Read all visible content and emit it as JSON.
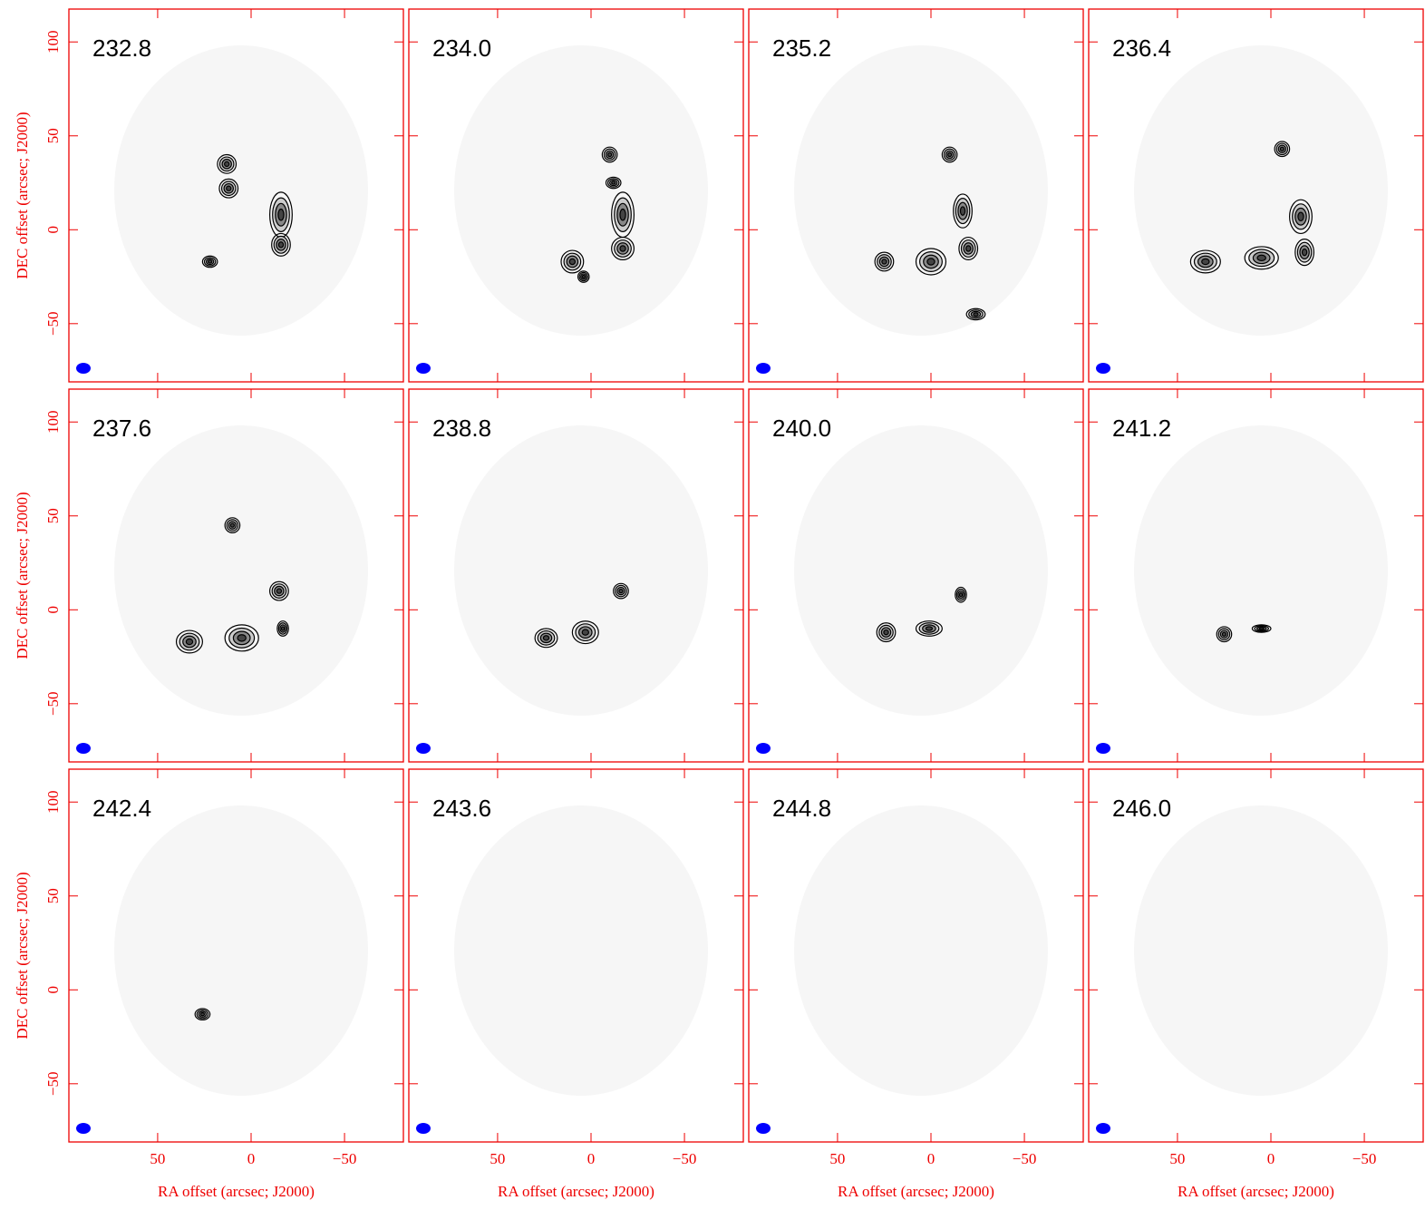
{
  "panels": [
    {
      "label": "232.8"
    },
    {
      "label": "234.0"
    },
    {
      "label": "235.2"
    },
    {
      "label": "236.4"
    },
    {
      "label": "237.6"
    },
    {
      "label": "238.8"
    },
    {
      "label": "240.0"
    },
    {
      "label": "241.2"
    },
    {
      "label": "242.4"
    },
    {
      "label": "243.6"
    },
    {
      "label": "244.8"
    },
    {
      "label": "246.0"
    }
  ],
  "x_axis": {
    "label": "RA offset (arcsec; J2000)",
    "lim": [
      97.5,
      -81.5
    ],
    "ticks": [
      50,
      0,
      {
        "value": -50,
        "label": "−50"
      }
    ]
  },
  "y_axis": {
    "label": "DEC offset (arcsec; J2000)",
    "lim": [
      -81,
      117.5
    ],
    "ticks": [
      100,
      50,
      0,
      {
        "value": -50,
        "label": "−50"
      }
    ]
  }
}
